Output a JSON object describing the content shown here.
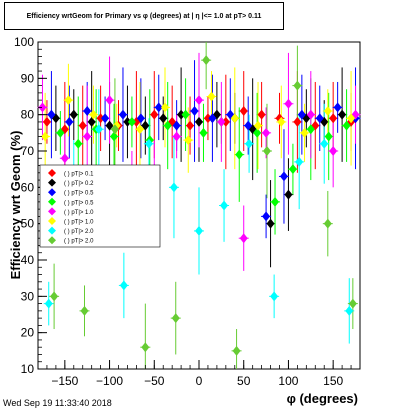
{
  "chart_data": {
    "type": "scatter",
    "title": "Efficiency wrtGeom for Primary vs φ (degrees) at | η |<= 1.0 at pT> 0.11",
    "xlabel": "φ (degrees)",
    "ylabel": "Efficiency wrt Geom (%)",
    "xlim": [
      -180,
      180
    ],
    "ylim": [
      10,
      100
    ],
    "x_ticks": [
      -150,
      -100,
      -50,
      0,
      50,
      100,
      150
    ],
    "y_ticks": [
      10,
      20,
      30,
      40,
      50,
      60,
      70,
      80,
      90,
      100
    ],
    "grid": false,
    "legend_position": "left-middle",
    "legend_visible_labels": [
      "(  ) pT|> 0.1",
      "(  ) pT|> 0.2",
      "(  ) pT|> 0.5",
      "(  ) pT|> 0.5",
      "(  ) pT|> 1.0",
      "(  ) pT|> 1.0",
      "(  ) pT|> 2.0",
      "(  ) pT|> 2.0"
    ],
    "series": [
      {
        "color": "#ff0000",
        "x": [
          -170,
          -150,
          -130,
          -110,
          -90,
          -70,
          -50,
          -30,
          -10,
          10,
          30,
          50,
          70,
          90,
          110,
          130,
          150,
          170
        ],
        "y": [
          78,
          76,
          77,
          79,
          77,
          78,
          80,
          78,
          77,
          79,
          78,
          81,
          80,
          79,
          78,
          77,
          79,
          78
        ]
      },
      {
        "color": "#000000",
        "x": [
          -160,
          -140,
          -120,
          -100,
          -80,
          -60,
          -40,
          -20,
          0,
          20,
          40,
          60,
          80,
          100,
          120,
          140,
          160
        ],
        "y": [
          79,
          80,
          78,
          77,
          78,
          77,
          79,
          80,
          78,
          80,
          79,
          76,
          50,
          58,
          79,
          78,
          80
        ]
      },
      {
        "color": "#0000ff",
        "x": [
          -165,
          -145,
          -125,
          -105,
          -85,
          -65,
          -45,
          -25,
          -5,
          15,
          35,
          55,
          75,
          95,
          115,
          135,
          155,
          175
        ],
        "y": [
          80,
          78,
          81,
          79,
          80,
          79,
          82,
          77,
          81,
          79,
          80,
          77,
          52,
          63,
          80,
          79,
          82,
          79
        ]
      },
      {
        "color": "#00ff00",
        "x": [
          -155,
          -135,
          -115,
          -95,
          -75,
          -55,
          -35,
          -15,
          5,
          25,
          45,
          65,
          85,
          105,
          125,
          145,
          165
        ],
        "y": [
          75,
          72,
          76,
          74,
          78,
          73,
          77,
          80,
          75,
          78,
          69,
          75,
          56,
          65,
          76,
          74,
          77
        ]
      },
      {
        "color": "#ff00ff",
        "x": [
          -175,
          -150,
          -125,
          -100,
          -75,
          -50,
          -25,
          0,
          25,
          50,
          75,
          100,
          125,
          150,
          175
        ],
        "y": [
          82,
          68,
          74,
          84,
          60,
          65,
          74,
          84,
          78,
          46,
          75,
          83,
          80,
          70,
          80
        ]
      },
      {
        "color": "#ffff00",
        "x": [
          -172,
          -146,
          -118,
          -92,
          -66,
          -38,
          -12,
          14,
          40,
          66,
          92,
          118,
          144,
          170
        ],
        "y": [
          74,
          84,
          80,
          77,
          76,
          82,
          73,
          85,
          79,
          77,
          78,
          75,
          81,
          79
        ]
      },
      {
        "color": "#00ffff",
        "x": [
          -168,
          -140,
          -112,
          -84,
          -56,
          -28,
          0,
          28,
          56,
          84,
          112,
          140,
          168
        ],
        "y": [
          28,
          60,
          76,
          33,
          72,
          60,
          48,
          55,
          72,
          30,
          67,
          72,
          26
        ]
      },
      {
        "color": "#66cc33",
        "x": [
          -162,
          -128,
          -94,
          -60,
          -26,
          8,
          42,
          76,
          110,
          144,
          172
        ],
        "y": [
          30,
          26,
          76,
          16,
          24,
          95,
          15,
          70,
          88,
          50,
          28
        ]
      }
    ]
  },
  "timestamp": "Wed Sep 19 11:33:40 2018"
}
